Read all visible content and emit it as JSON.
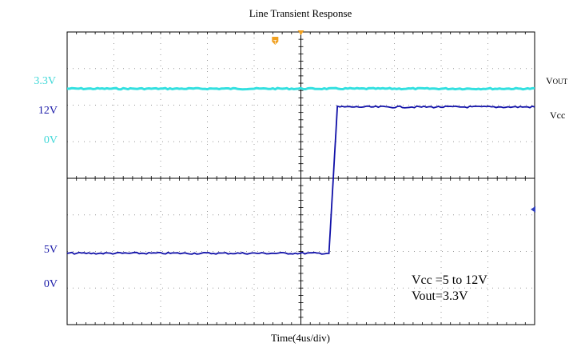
{
  "chart_data": {
    "type": "line",
    "title": "Line Transient Response",
    "xlabel": "Time(4us/div)",
    "x_divisions": 10,
    "y_divisions": 8,
    "grid": true,
    "left_labels": [
      {
        "text": "3.3V",
        "color": "#40d8d8"
      },
      {
        "text": "12V",
        "color": "#1a1aa8"
      },
      {
        "text": "0V",
        "color": "#40d8d8"
      },
      {
        "text": "5V",
        "color": "#1a1aa8"
      },
      {
        "text": "0V",
        "color": "#1a1aa8"
      }
    ],
    "series": [
      {
        "name": "VOUT",
        "color": "#33e0e0",
        "level_div": 6.45
      },
      {
        "name": "Vcc",
        "color": "#1010a8",
        "x_div": [
          0,
          5.6,
          5.78,
          10
        ],
        "y_div": [
          1.95,
          1.95,
          5.95,
          5.95
        ]
      }
    ],
    "trigger_markers": [
      {
        "label": "T",
        "color": "#f0a020"
      }
    ],
    "annotations": [
      "Vcc =5 to 12V",
      "Vout=3.3V"
    ]
  }
}
